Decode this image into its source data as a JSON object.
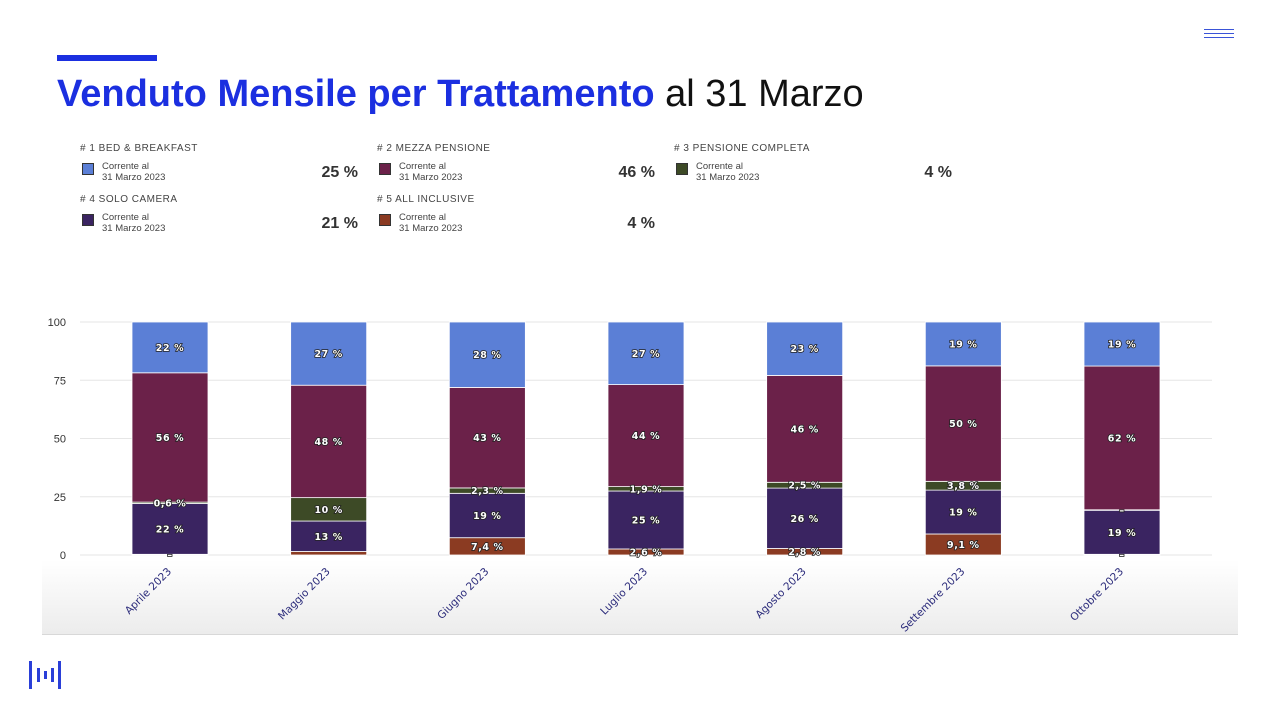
{
  "header": {
    "title_bold": "Venduto Mensile per Trattamento",
    "title_rest": " al 31 Marzo"
  },
  "icons": {
    "menu": "hamburger-menu-icon",
    "logo": "brand-logo-icon"
  },
  "legend": [
    {
      "heading": "# 1 BED & BREAKFAST",
      "sub1": "Corrente al",
      "sub2": "31 Marzo 2023",
      "value": "25 %",
      "color": "#5b7fd6"
    },
    {
      "heading": "# 2 MEZZA PENSIONE",
      "sub1": "Corrente al",
      "sub2": "31 Marzo 2023",
      "value": "46 %",
      "color": "#6b2149"
    },
    {
      "heading": "# 3 PENSIONE COMPLETA",
      "sub1": "Corrente al",
      "sub2": "31 Marzo 2023",
      "value": "4 %",
      "color": "#3d4a26"
    },
    {
      "heading": "# 4 SOLO CAMERA",
      "sub1": "Corrente al",
      "sub2": "31 Marzo 2023",
      "value": "21 %",
      "color": "#3a2461"
    },
    {
      "heading": "# 5 ALL INCLUSIVE",
      "sub1": "Corrente al",
      "sub2": "31 Marzo 2023",
      "value": "4 %",
      "color": "#8b3b22"
    }
  ],
  "chart_data": {
    "type": "bar",
    "stacked": true,
    "categories": [
      "Aprile 2023",
      "Maggio 2023",
      "Giugno 2023",
      "Luglio 2023",
      "Agosto 2023",
      "Settembre 2023",
      "Ottobre 2023"
    ],
    "ylim": [
      0,
      100
    ],
    "yticks": [
      0,
      25,
      50,
      75,
      100
    ],
    "grid": true,
    "series": [
      {
        "name": "# 5 ALL INCLUSIVE",
        "color": "#8b3b22",
        "values": [
          0.3,
          1.5,
          7.4,
          2.6,
          2.8,
          9.1,
          0.3
        ],
        "labels": [
          "–",
          "",
          "7,4 %",
          "2,6 %",
          "2,8 %",
          "9,1 %",
          "–"
        ]
      },
      {
        "name": "# 4 SOLO CAMERA",
        "color": "#3a2461",
        "values": [
          22,
          13,
          19,
          25,
          26,
          19,
          19
        ],
        "labels": [
          "22 %",
          "13 %",
          "19 %",
          "25 %",
          "26 %",
          "19 %",
          "19 %"
        ]
      },
      {
        "name": "# 3 PENSIONE COMPLETA",
        "color": "#3d4a26",
        "values": [
          0.6,
          10,
          2.3,
          1.9,
          2.5,
          3.8,
          0.2
        ],
        "labels": [
          "0,6 %",
          "10 %",
          "2,3 %",
          "1,9 %",
          "2,5 %",
          "3,8 %",
          "–"
        ]
      },
      {
        "name": "# 2 MEZZA PENSIONE",
        "color": "#6b2149",
        "values": [
          56,
          48,
          43,
          44,
          46,
          50,
          62
        ],
        "labels": [
          "56 %",
          "48 %",
          "43 %",
          "44 %",
          "46 %",
          "50 %",
          "62 %"
        ]
      },
      {
        "name": "# 1 BED & BREAKFAST",
        "color": "#5b7fd6",
        "values": [
          22,
          27,
          28,
          27,
          23,
          19,
          19
        ],
        "labels": [
          "22 %",
          "27 %",
          "28 %",
          "27 %",
          "23 %",
          "19 %",
          "19 %"
        ]
      }
    ]
  }
}
